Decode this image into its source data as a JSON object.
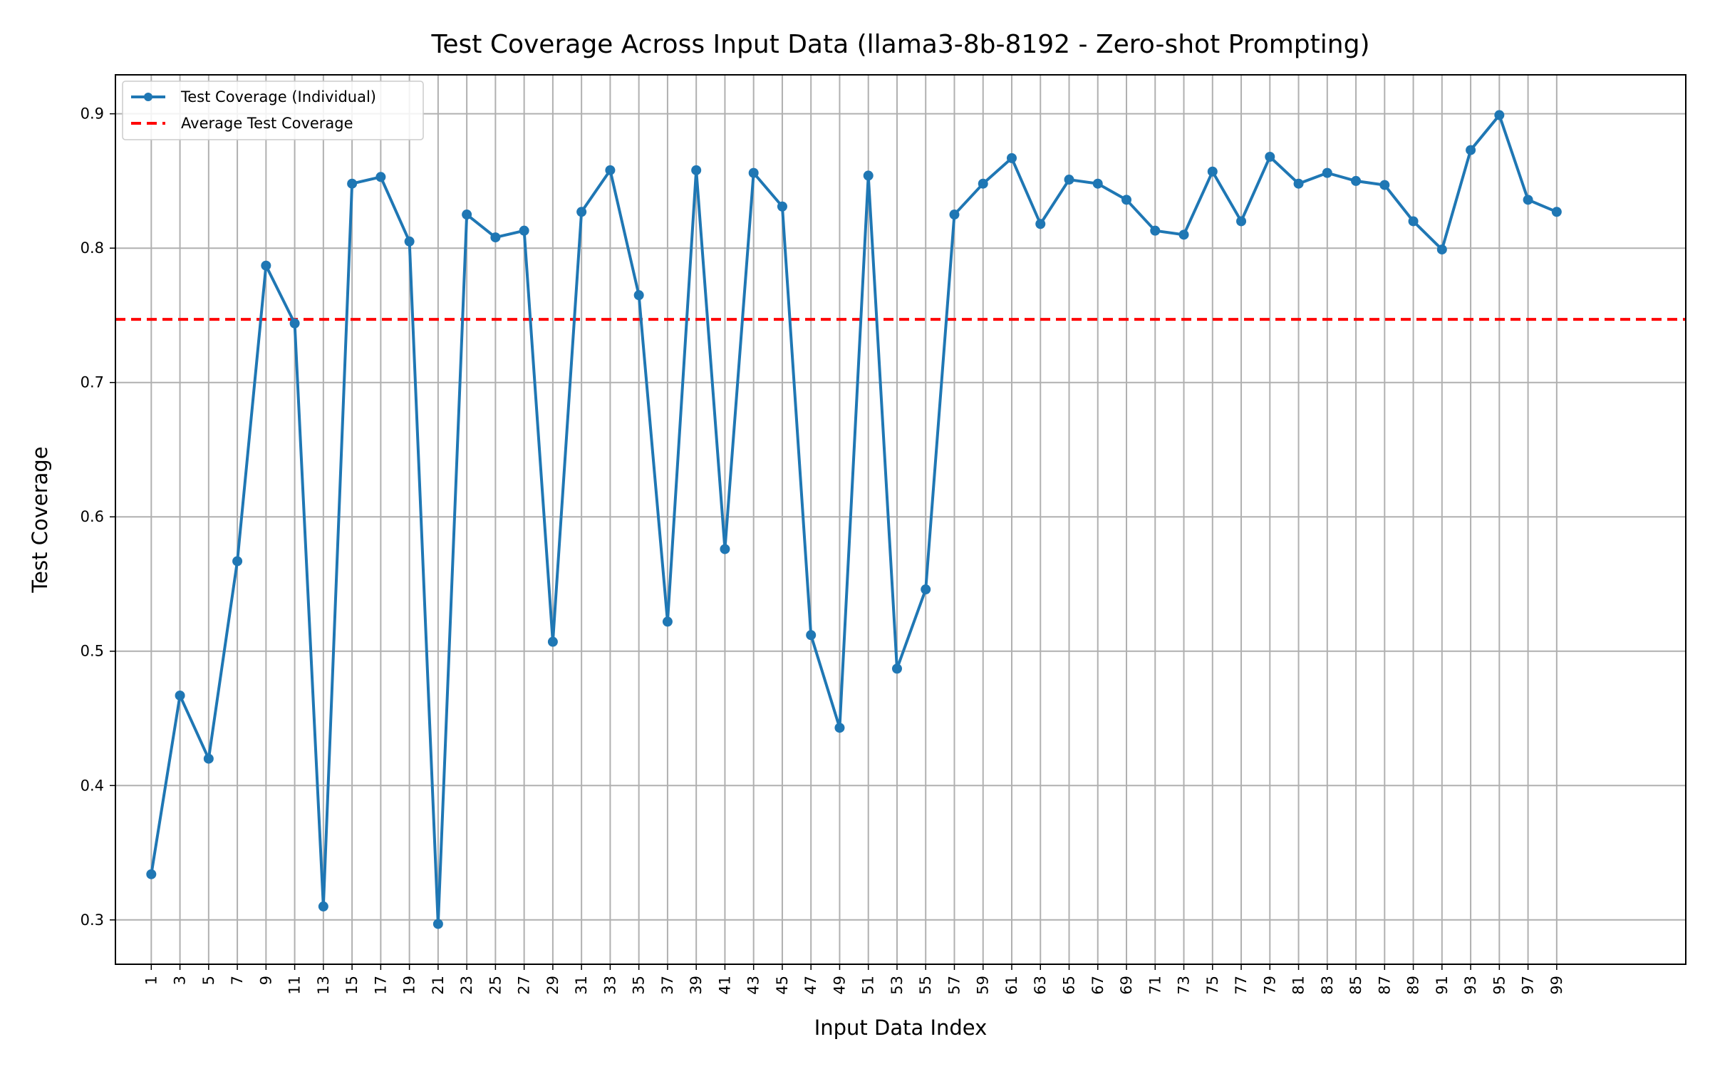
{
  "chart_data": {
    "type": "line",
    "title": "Test Coverage Across Input Data (llama3-8b-8192 - Zero-shot Prompting)",
    "xlabel": "Input Data Index",
    "ylabel": "Test Coverage",
    "xlim": [
      -1.5,
      108
    ],
    "ylim": [
      0.267,
      0.929
    ],
    "x_ticks": [
      1,
      3,
      5,
      7,
      9,
      11,
      13,
      15,
      17,
      19,
      21,
      23,
      25,
      27,
      29,
      31,
      33,
      35,
      37,
      39,
      41,
      43,
      45,
      47,
      49,
      51,
      53,
      55,
      57,
      59,
      61,
      63,
      65,
      67,
      69,
      71,
      73,
      75,
      77,
      79,
      81,
      83,
      85,
      87,
      89,
      91,
      93,
      95,
      97,
      99
    ],
    "y_ticks": [
      0.3,
      0.4,
      0.5,
      0.6,
      0.7,
      0.8,
      0.9
    ],
    "y_tick_labels": [
      "0.3",
      "0.4",
      "0.5",
      "0.6",
      "0.7",
      "0.8",
      "0.9"
    ],
    "grid": true,
    "legend_position": "top-left",
    "series": [
      {
        "name": "Test Coverage (Individual)",
        "color": "#1f77b4",
        "style": "solid",
        "marker": "circle",
        "x": [
          1,
          3,
          5,
          7,
          9,
          11,
          13,
          15,
          17,
          19,
          21,
          23,
          25,
          27,
          29,
          31,
          33,
          35,
          37,
          39,
          41,
          43,
          45,
          47,
          49,
          51,
          53,
          55,
          57,
          59,
          61,
          63,
          65,
          67,
          69,
          71,
          73,
          75,
          77,
          79,
          81,
          83,
          85,
          87,
          89,
          91,
          93,
          95,
          97,
          99
        ],
        "values": [
          0.334,
          0.467,
          0.42,
          0.567,
          0.787,
          0.744,
          0.31,
          0.848,
          0.853,
          0.805,
          0.297,
          0.825,
          0.808,
          0.813,
          0.507,
          0.827,
          0.858,
          0.765,
          0.522,
          0.858,
          0.576,
          0.856,
          0.831,
          0.512,
          0.443,
          0.854,
          0.487,
          0.546,
          0.825,
          0.848,
          0.867,
          0.818,
          0.851,
          0.848,
          0.836,
          0.813,
          0.81,
          0.857,
          0.82,
          0.868,
          0.848,
          0.856,
          0.85,
          0.847,
          0.82,
          0.799,
          0.873,
          0.899,
          0.836,
          0.827
        ]
      },
      {
        "name": "Average Test Coverage",
        "color": "#ff0000",
        "style": "dashed",
        "value": 0.747
      }
    ]
  }
}
